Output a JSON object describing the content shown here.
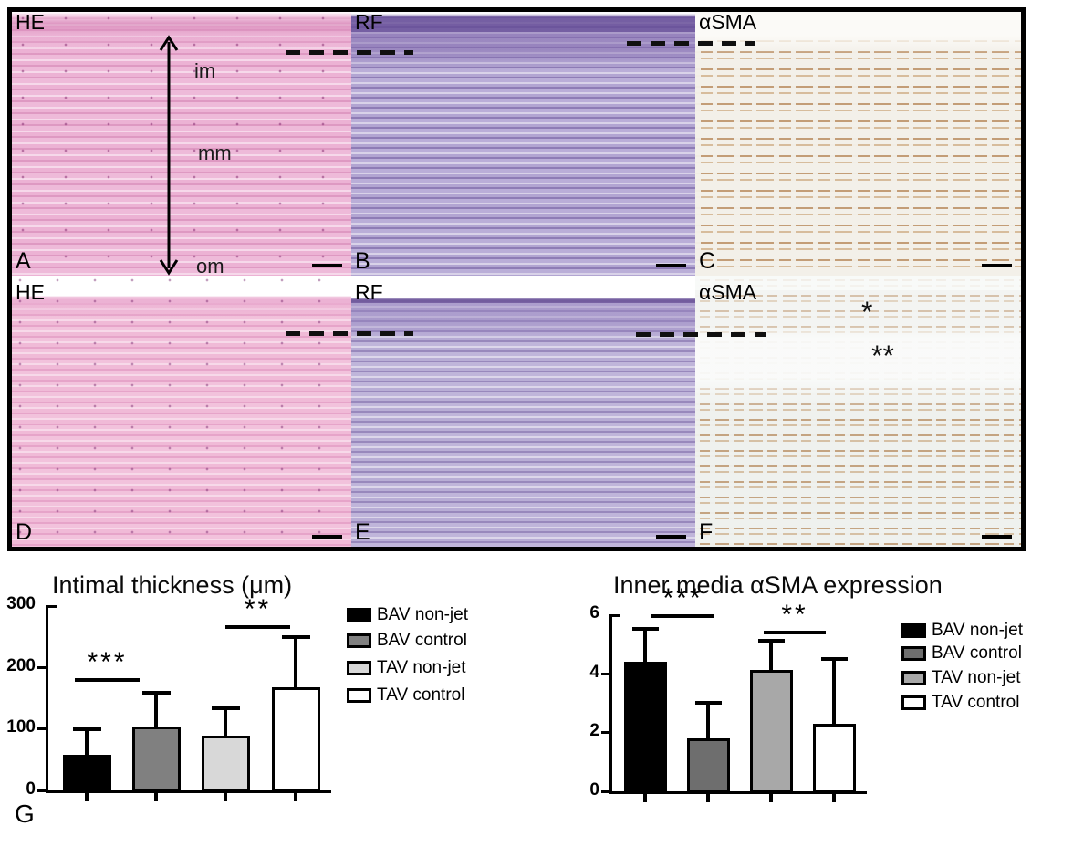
{
  "figure_panels": [
    {
      "letter": "A",
      "stain": "HE"
    },
    {
      "letter": "B",
      "stain": "RF"
    },
    {
      "letter": "C",
      "stain": "αSMA"
    },
    {
      "letter": "D",
      "stain": "HE"
    },
    {
      "letter": "E",
      "stain": "RF"
    },
    {
      "letter": "F",
      "stain": "αSMA"
    }
  ],
  "panel_a": {
    "arrow_icon": "double-headed-vertical-arrow",
    "layer_labels": [
      "im",
      "mm",
      "om"
    ]
  },
  "panel_f": {
    "markers": [
      "*",
      "**"
    ]
  },
  "bottom_label": "G",
  "colors": {
    "he_stain_pink": "#ecb2d4",
    "rf_stain_purple": "#b2a5d2",
    "sma_stain_brown": "#a4682c",
    "sma_background_cream": "#f3f0e9",
    "bar_black": "#000000",
    "bar_dark_gray": "#6e6e6e",
    "bar_medium_gray": "#a8a8a8",
    "bar_light_gray": "#d8d8d8",
    "bar_white": "#ffffff"
  },
  "chart_data": [
    {
      "type": "bar",
      "title": "Intimal thickness (μm)",
      "categories": [
        "BAV non-jet",
        "BAV control",
        "TAV non-jet",
        "TAV control"
      ],
      "values": [
        58,
        103,
        88,
        167
      ],
      "upper_error": [
        99,
        158,
        133,
        248
      ],
      "bar_colors": [
        "#000000",
        "#808080",
        "#d8d8d8",
        "#ffffff"
      ],
      "ylim": [
        0,
        300
      ],
      "yticks": [
        0,
        100,
        200,
        300
      ],
      "xlabel": "",
      "ylabel": "",
      "grid": false,
      "legend_position": "right",
      "legend": [
        "BAV non-jet",
        "BAV control",
        "TAV non-jet",
        "TAV control"
      ],
      "significance": [
        {
          "from": 0,
          "to": 1,
          "label": "***",
          "line_y": 182
        },
        {
          "from": 2,
          "to": 3,
          "label": "**",
          "line_y": 267
        }
      ]
    },
    {
      "type": "bar",
      "title": "Inner media αSMA expression",
      "categories": [
        "BAV non-jet",
        "BAV control",
        "TAV non-jet",
        "TAV control"
      ],
      "values": [
        4.4,
        1.8,
        4.1,
        2.3
      ],
      "upper_error": [
        5.5,
        3.0,
        5.1,
        4.5
      ],
      "bar_colors": [
        "#000000",
        "#6e6e6e",
        "#a8a8a8",
        "#ffffff"
      ],
      "ylim": [
        0,
        6
      ],
      "yticks": [
        0,
        2,
        4,
        6
      ],
      "xlabel": "",
      "ylabel": "",
      "grid": false,
      "legend_position": "right",
      "legend": [
        "BAV non-jet",
        "BAV control",
        "TAV non-jet",
        "TAV control"
      ],
      "significance": [
        {
          "from": 0,
          "to": 1,
          "label": "***",
          "line_y": 6.0
        },
        {
          "from": 2,
          "to": 3,
          "label": "**",
          "line_y": 5.45
        }
      ]
    }
  ]
}
